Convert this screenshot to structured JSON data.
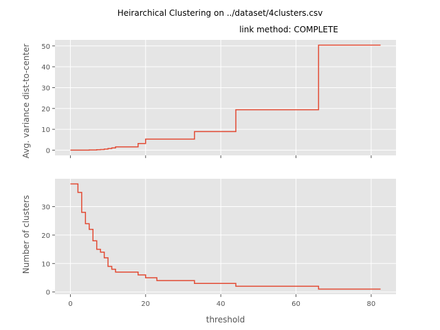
{
  "chart_data": [
    {
      "type": "line",
      "title": "Heirarchical Clustering on ../dataset/4clusters.csv",
      "subtitle": "link method: COMPLETE",
      "xlabel": "",
      "ylabel": "Avg. variance dist-to-center",
      "xlim": [
        -4.1,
        86.6
      ],
      "ylim": [
        -2.5,
        52.9
      ],
      "xticks": [
        0,
        20,
        40,
        60,
        80
      ],
      "yticks": [
        0,
        10,
        20,
        30,
        40,
        50
      ],
      "xtick_labels_visible": false,
      "grid": true,
      "step": "post",
      "color": "#E24A33",
      "x": [
        0,
        5,
        7,
        8,
        9,
        10,
        11,
        12,
        18,
        20,
        33,
        44,
        66,
        82.5
      ],
      "y": [
        0,
        0.1,
        0.2,
        0.3,
        0.5,
        0.8,
        1.1,
        1.6,
        3.2,
        5.3,
        8.9,
        19.4,
        50.4,
        50.4
      ]
    },
    {
      "type": "line",
      "title": "",
      "xlabel": "threshold",
      "ylabel": "Number of clusters",
      "xlim": [
        -4.1,
        86.6
      ],
      "ylim": [
        -0.8,
        39.8
      ],
      "xticks": [
        0,
        20,
        40,
        60,
        80
      ],
      "yticks": [
        0,
        10,
        20,
        30
      ],
      "grid": true,
      "step": "post",
      "color": "#E24A33",
      "x": [
        0,
        2,
        3,
        4,
        5,
        6,
        7,
        8,
        9,
        10,
        11,
        12,
        18,
        20,
        23,
        33,
        44,
        66,
        82.5
      ],
      "y": [
        38,
        35,
        28,
        24,
        22,
        18,
        15,
        14,
        12,
        9,
        8,
        7,
        6,
        5,
        4,
        3,
        2,
        1,
        1
      ]
    }
  ]
}
